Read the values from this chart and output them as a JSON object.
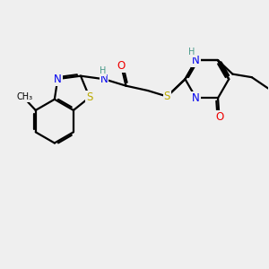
{
  "bg_color": "#efefef",
  "atom_colors": {
    "C": "#000000",
    "N": "#0000ee",
    "O": "#ee0000",
    "S": "#bbaa00",
    "H": "#4a9a8a"
  },
  "bond_color": "#000000",
  "bond_lw": 1.6,
  "font_size": 8.5,
  "fig_bg": "#efefef"
}
